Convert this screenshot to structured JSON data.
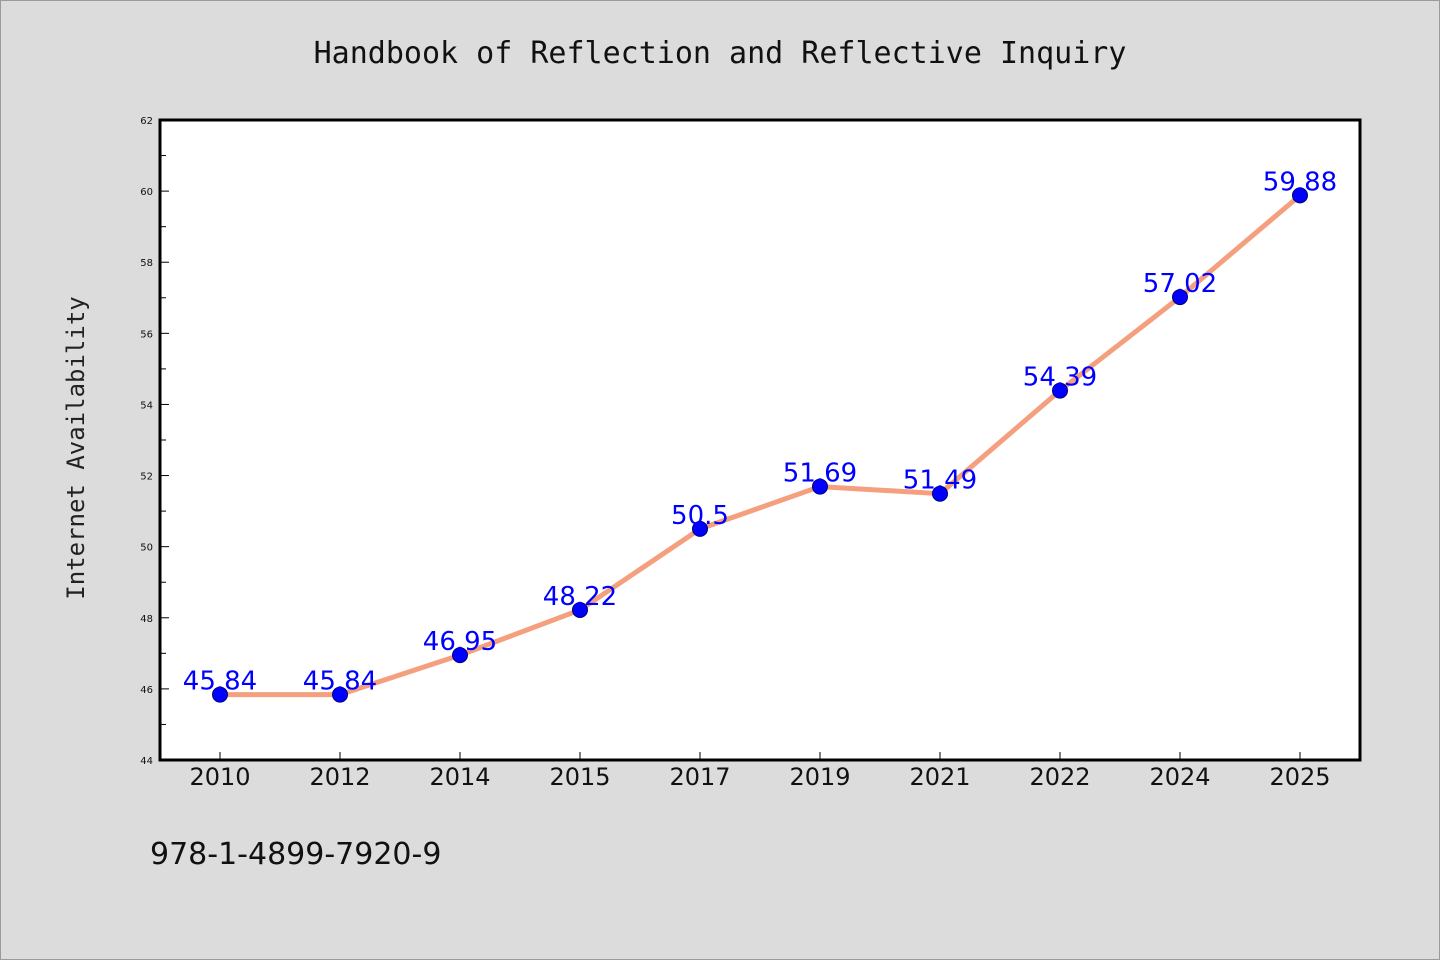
{
  "chart_data": {
    "type": "line",
    "title": "Handbook of Reflection and Reflective Inquiry",
    "xlabel": "",
    "ylabel": "Internet Availability",
    "categories": [
      "2010",
      "2012",
      "2014",
      "2015",
      "2017",
      "2019",
      "2021",
      "2022",
      "2024",
      "2025"
    ],
    "series": [
      {
        "values": [
          45.84,
          45.84,
          46.95,
          48.22,
          50.5,
          51.69,
          51.49,
          54.39,
          57.02,
          59.88
        ],
        "labels": [
          "45.84",
          "45.84",
          "46.95",
          "48.22",
          "50.5",
          "51.69",
          "51.49",
          "54.39",
          "57.02",
          "59.88"
        ]
      }
    ],
    "ylim": [
      44,
      62
    ],
    "yticks": [
      "44",
      "46",
      "48",
      "50",
      "52",
      "54",
      "56",
      "58",
      "60",
      "62"
    ],
    "grid": false,
    "line_color": "#f4a07f",
    "marker_color": "#0000ff",
    "label_color": "#0000ff"
  },
  "footer": {
    "isbn": "978-1-4899-7920-9"
  }
}
